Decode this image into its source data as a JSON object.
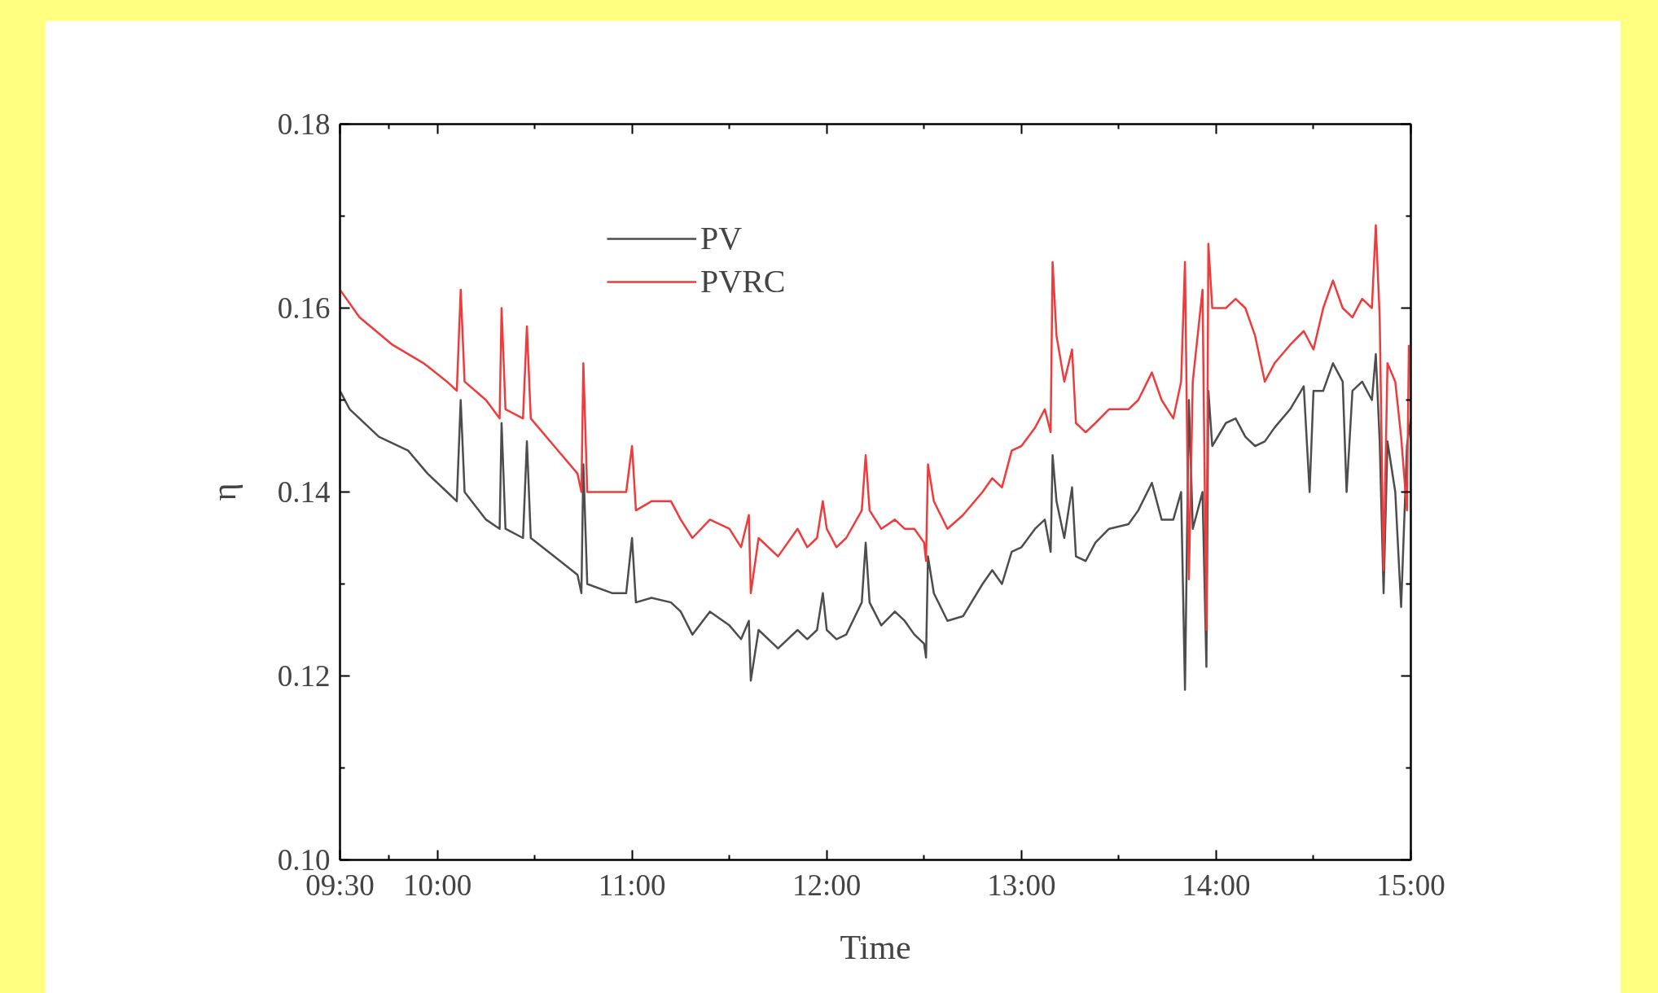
{
  "chart_data": {
    "type": "line",
    "xlabel": "Time",
    "ylabel": "η",
    "xlim": [
      9.5,
      15
    ],
    "ylim": [
      0.1,
      0.18
    ],
    "xticks": [
      {
        "value": 9.5,
        "label": "09:30"
      },
      {
        "value": 10,
        "label": "10:00"
      },
      {
        "value": 11,
        "label": "11:00"
      },
      {
        "value": 12,
        "label": "12:00"
      },
      {
        "value": 13,
        "label": "13:00"
      },
      {
        "value": 14,
        "label": "14:00"
      },
      {
        "value": 15,
        "label": "15:00"
      }
    ],
    "yticks": [
      {
        "value": 0.1,
        "label": "0.10"
      },
      {
        "value": 0.12,
        "label": "0.12"
      },
      {
        "value": 0.14,
        "label": "0.14"
      },
      {
        "value": 0.16,
        "label": "0.16"
      },
      {
        "value": 0.18,
        "label": "0.18"
      }
    ],
    "grid": false,
    "legend": "top left",
    "marker": "none",
    "line_style": "solid",
    "series": [
      {
        "name": "PV",
        "color": "#4d4d4d",
        "x": [
          9.5,
          9.55,
          9.7,
          9.85,
          9.95,
          10.05,
          10.1,
          10.12,
          10.14,
          10.25,
          10.32,
          10.33,
          10.35,
          10.44,
          10.46,
          10.48,
          10.6,
          10.72,
          10.74,
          10.75,
          10.77,
          10.9,
          10.97,
          11.0,
          11.02,
          11.1,
          11.2,
          11.25,
          11.31,
          11.4,
          11.5,
          11.56,
          11.6,
          11.61,
          11.65,
          11.75,
          11.85,
          11.9,
          11.95,
          11.98,
          12.0,
          12.05,
          12.1,
          12.18,
          12.2,
          12.22,
          12.28,
          12.35,
          12.4,
          12.45,
          12.5,
          12.51,
          12.52,
          12.55,
          12.62,
          12.7,
          12.8,
          12.85,
          12.9,
          12.95,
          13.0,
          13.07,
          13.12,
          13.15,
          13.16,
          13.18,
          13.22,
          13.26,
          13.28,
          13.33,
          13.38,
          13.45,
          13.55,
          13.6,
          13.67,
          13.72,
          13.78,
          13.82,
          13.84,
          13.86,
          13.88,
          13.93,
          13.95,
          13.96,
          13.98,
          14.05,
          14.1,
          14.15,
          14.2,
          14.25,
          14.3,
          14.38,
          14.45,
          14.48,
          14.5,
          14.55,
          14.6,
          14.65,
          14.67,
          14.7,
          14.75,
          14.8,
          14.82,
          14.84,
          14.86,
          14.88,
          14.92,
          14.95,
          14.98,
          15.0
        ],
        "values": [
          0.151,
          0.149,
          0.146,
          0.1445,
          0.142,
          0.14,
          0.139,
          0.15,
          0.14,
          0.137,
          0.136,
          0.1475,
          0.136,
          0.135,
          0.1455,
          0.135,
          0.133,
          0.131,
          0.129,
          0.143,
          0.13,
          0.129,
          0.129,
          0.135,
          0.128,
          0.1285,
          0.128,
          0.127,
          0.1245,
          0.127,
          0.1255,
          0.124,
          0.126,
          0.1195,
          0.125,
          0.123,
          0.125,
          0.124,
          0.125,
          0.129,
          0.125,
          0.124,
          0.1245,
          0.128,
          0.1345,
          0.128,
          0.1255,
          0.127,
          0.126,
          0.1245,
          0.1235,
          0.122,
          0.133,
          0.129,
          0.126,
          0.1265,
          0.13,
          0.1315,
          0.13,
          0.1335,
          0.134,
          0.136,
          0.137,
          0.1335,
          0.144,
          0.139,
          0.135,
          0.1405,
          0.133,
          0.1325,
          0.1345,
          0.136,
          0.1365,
          0.138,
          0.141,
          0.137,
          0.137,
          0.14,
          0.1185,
          0.15,
          0.136,
          0.14,
          0.121,
          0.151,
          0.145,
          0.1475,
          0.148,
          0.146,
          0.145,
          0.1455,
          0.147,
          0.149,
          0.1515,
          0.14,
          0.151,
          0.151,
          0.154,
          0.152,
          0.14,
          0.151,
          0.152,
          0.15,
          0.155,
          0.1455,
          0.129,
          0.1455,
          0.14,
          0.1275,
          0.145,
          0.148
        ]
      },
      {
        "name": "PVRC",
        "color": "#ee3b3b",
        "x": [
          9.5,
          9.6,
          9.77,
          9.93,
          10.05,
          10.1,
          10.12,
          10.14,
          10.25,
          10.32,
          10.33,
          10.35,
          10.44,
          10.46,
          10.48,
          10.6,
          10.72,
          10.74,
          10.75,
          10.77,
          10.9,
          10.97,
          11.0,
          11.02,
          11.1,
          11.2,
          11.25,
          11.31,
          11.4,
          11.5,
          11.56,
          11.6,
          11.61,
          11.65,
          11.75,
          11.85,
          11.9,
          11.95,
          11.98,
          12.0,
          12.05,
          12.1,
          12.18,
          12.2,
          12.22,
          12.28,
          12.35,
          12.4,
          12.45,
          12.5,
          12.51,
          12.52,
          12.55,
          12.62,
          12.7,
          12.8,
          12.85,
          12.9,
          12.95,
          13.0,
          13.07,
          13.12,
          13.15,
          13.16,
          13.18,
          13.22,
          13.26,
          13.28,
          13.33,
          13.38,
          13.45,
          13.55,
          13.6,
          13.67,
          13.72,
          13.78,
          13.82,
          13.84,
          13.86,
          13.88,
          13.93,
          13.95,
          13.96,
          13.98,
          14.05,
          14.1,
          14.15,
          14.2,
          14.25,
          14.3,
          14.38,
          14.45,
          14.5,
          14.55,
          14.6,
          14.65,
          14.7,
          14.75,
          14.8,
          14.82,
          14.84,
          14.86,
          14.88,
          14.92,
          14.95,
          14.98,
          14.99
        ],
        "values": [
          0.162,
          0.159,
          0.156,
          0.154,
          0.152,
          0.151,
          0.162,
          0.152,
          0.15,
          0.148,
          0.16,
          0.149,
          0.148,
          0.158,
          0.148,
          0.145,
          0.142,
          0.14,
          0.154,
          0.14,
          0.14,
          0.14,
          0.145,
          0.138,
          0.139,
          0.139,
          0.137,
          0.135,
          0.137,
          0.136,
          0.134,
          0.1375,
          0.129,
          0.135,
          0.133,
          0.136,
          0.134,
          0.135,
          0.139,
          0.136,
          0.134,
          0.135,
          0.138,
          0.144,
          0.138,
          0.136,
          0.137,
          0.136,
          0.136,
          0.1345,
          0.1325,
          0.143,
          0.139,
          0.136,
          0.1375,
          0.14,
          0.1415,
          0.1405,
          0.1445,
          0.145,
          0.147,
          0.149,
          0.1465,
          0.165,
          0.157,
          0.152,
          0.1555,
          0.1475,
          0.1465,
          0.1475,
          0.149,
          0.149,
          0.15,
          0.153,
          0.15,
          0.148,
          0.152,
          0.165,
          0.1305,
          0.152,
          0.162,
          0.125,
          0.167,
          0.16,
          0.16,
          0.161,
          0.16,
          0.157,
          0.152,
          0.154,
          0.156,
          0.1575,
          0.1555,
          0.16,
          0.163,
          0.16,
          0.159,
          0.161,
          0.16,
          0.169,
          0.159,
          0.1315,
          0.154,
          0.152,
          0.146,
          0.138,
          0.156
        ]
      }
    ]
  }
}
